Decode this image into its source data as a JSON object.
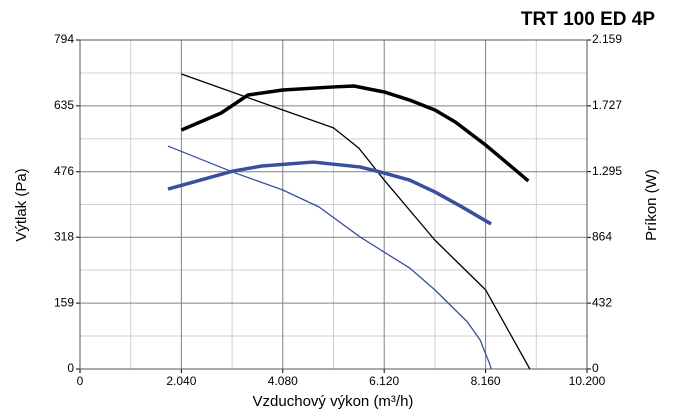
{
  "chart_data": {
    "type": "line",
    "title": "TRT 100 ED 4P",
    "xlabel": "Vzduchový výkon (m³/h)",
    "ylabel": "Výtlak (Pa)",
    "y2label": "Príkon (W)",
    "xlim": [
      0,
      10200
    ],
    "xticks": [
      0,
      {
        "value": 2040,
        "label": "2.040"
      },
      {
        "value": 4080,
        "label": "4.080"
      },
      {
        "value": 6120,
        "label": "6.120"
      },
      {
        "value": 8160,
        "label": "8.160"
      },
      {
        "value": 10200,
        "label": "10.200"
      }
    ],
    "ylim": [
      0,
      794
    ],
    "yticks": [
      0,
      159,
      318,
      476,
      635,
      794
    ],
    "y2lim": [
      0,
      2159
    ],
    "y2ticks": [
      0,
      432,
      864,
      {
        "value": 1295,
        "label": "1.295"
      },
      {
        "value": 1727,
        "label": "1.727"
      },
      {
        "value": 2159,
        "label": "2.159"
      }
    ],
    "grid": true,
    "series": [
      {
        "color": "#000000",
        "width": 1.3,
        "x": [
          2040,
          4080,
          5100,
          5610,
          6120,
          7140,
          7650,
          8160,
          9050
        ],
        "values": [
          712,
          625,
          582,
          533,
          456,
          311,
          251,
          191,
          0
        ]
      },
      {
        "color": "#000000",
        "width": 3.5,
        "axis": "y2",
        "x": [
          2040,
          2840,
          3380,
          4080,
          5100,
          5510,
          6120,
          6630,
          7140,
          7550,
          8160,
          8570,
          9020
        ],
        "values": [
          1568,
          1680,
          1798,
          1831,
          1851,
          1857,
          1818,
          1765,
          1700,
          1621,
          1470,
          1358,
          1234
        ]
      },
      {
        "color": "#3a4fa0",
        "width": 1.3,
        "x": [
          1770,
          3080,
          4080,
          4810,
          5630,
          6120,
          6630,
          7140,
          7790,
          8050,
          8250,
          8270
        ],
        "values": [
          538,
          475,
          432,
          391,
          319,
          282,
          244,
          191,
          114,
          70,
          10,
          0
        ]
      },
      {
        "color": "#3a4fa0",
        "width": 3.5,
        "axis": "y2",
        "x": [
          1770,
          3080,
          3660,
          4690,
          5630,
          6120,
          6630,
          7140,
          7650,
          8270
        ],
        "values": [
          1181,
          1299,
          1332,
          1358,
          1326,
          1286,
          1240,
          1162,
          1070,
          952
        ]
      }
    ]
  }
}
